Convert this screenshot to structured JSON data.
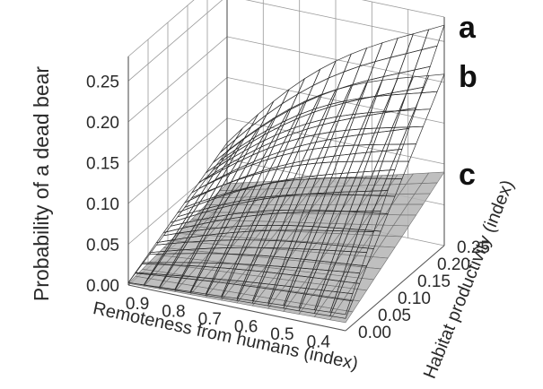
{
  "chart_data": {
    "type": "surface3d",
    "title": "",
    "zlabel": "Probability of a dead bear",
    "xlabel": "Remoteness from humans (index)",
    "ylabel": "Habitat productivity (index)",
    "zlim": [
      0,
      0.28
    ],
    "xlim": [
      0.35,
      0.95
    ],
    "ylim": [
      0,
      0.25
    ],
    "z_ticks": [
      "0.00",
      "0.05",
      "0.10",
      "0.15",
      "0.20",
      "0.25"
    ],
    "x_ticks": [
      "0.9",
      "0.8",
      "0.7",
      "0.6",
      "0.5",
      "0.4"
    ],
    "y_ticks": [
      "0.00",
      "0.05",
      "0.10",
      "0.15",
      "0.20",
      "0.25"
    ],
    "grid": true,
    "series": [
      {
        "name": "a",
        "color": "#ffffff",
        "corners": {
          "remote_lowprod": 0.003,
          "remote_highprod": 0.07,
          "near_lowprod": 0.02,
          "near_highprod": 0.27
        }
      },
      {
        "name": "b",
        "color": "#ffffff",
        "corners": {
          "remote_lowprod": 0.003,
          "remote_highprod": 0.06,
          "near_lowprod": 0.015,
          "near_highprod": 0.21
        }
      },
      {
        "name": "c",
        "color": "#b4b4b4",
        "corners": {
          "remote_lowprod": 0.002,
          "remote_highprod": 0.02,
          "near_lowprod": 0.01,
          "near_highprod": 0.09
        }
      }
    ]
  }
}
